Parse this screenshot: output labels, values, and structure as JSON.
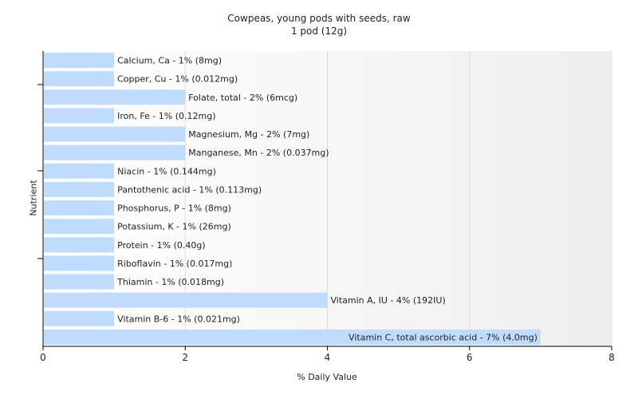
{
  "chart_data": {
    "type": "bar",
    "orientation": "horizontal",
    "title": "Cowpeas, young pods with seeds, raw",
    "subtitle": "1 pod (12g)",
    "xlabel": "% Daily Value",
    "ylabel": "Nutrient",
    "xlim": [
      0,
      8
    ],
    "xticks": [
      0,
      2,
      4,
      6,
      8
    ],
    "grid": true,
    "bar_color": "#bfdcff",
    "categories": [
      "Calcium, Ca",
      "Copper, Cu",
      "Folate, total",
      "Iron, Fe",
      "Magnesium, Mg",
      "Manganese, Mn",
      "Niacin",
      "Pantothenic acid",
      "Phosphorus, P",
      "Potassium, K",
      "Protein",
      "Riboflavin",
      "Thiamin",
      "Vitamin A, IU",
      "Vitamin B-6",
      "Vitamin C, total ascorbic acid"
    ],
    "values": [
      1,
      1,
      2,
      1,
      2,
      2,
      1,
      1,
      1,
      1,
      1,
      1,
      1,
      4,
      1,
      7
    ],
    "labels": [
      "Calcium, Ca - 1% (8mg)",
      "Copper, Cu - 1% (0.012mg)",
      "Folate, total - 2% (6mcg)",
      "Iron, Fe - 1% (0.12mg)",
      "Magnesium, Mg - 2% (7mg)",
      "Manganese, Mn - 2% (0.037mg)",
      "Niacin - 1% (0.144mg)",
      "Pantothenic acid - 1% (0.113mg)",
      "Phosphorus, P - 1% (8mg)",
      "Potassium, K - 1% (26mg)",
      "Protein - 1% (0.40g)",
      "Riboflavin - 1% (0.017mg)",
      "Thiamin - 1% (0.018mg)",
      "Vitamin A, IU - 4% (192IU)",
      "Vitamin B-6 - 1% (0.021mg)",
      "Vitamin C, total ascorbic acid - 7% (4.0mg)"
    ]
  }
}
